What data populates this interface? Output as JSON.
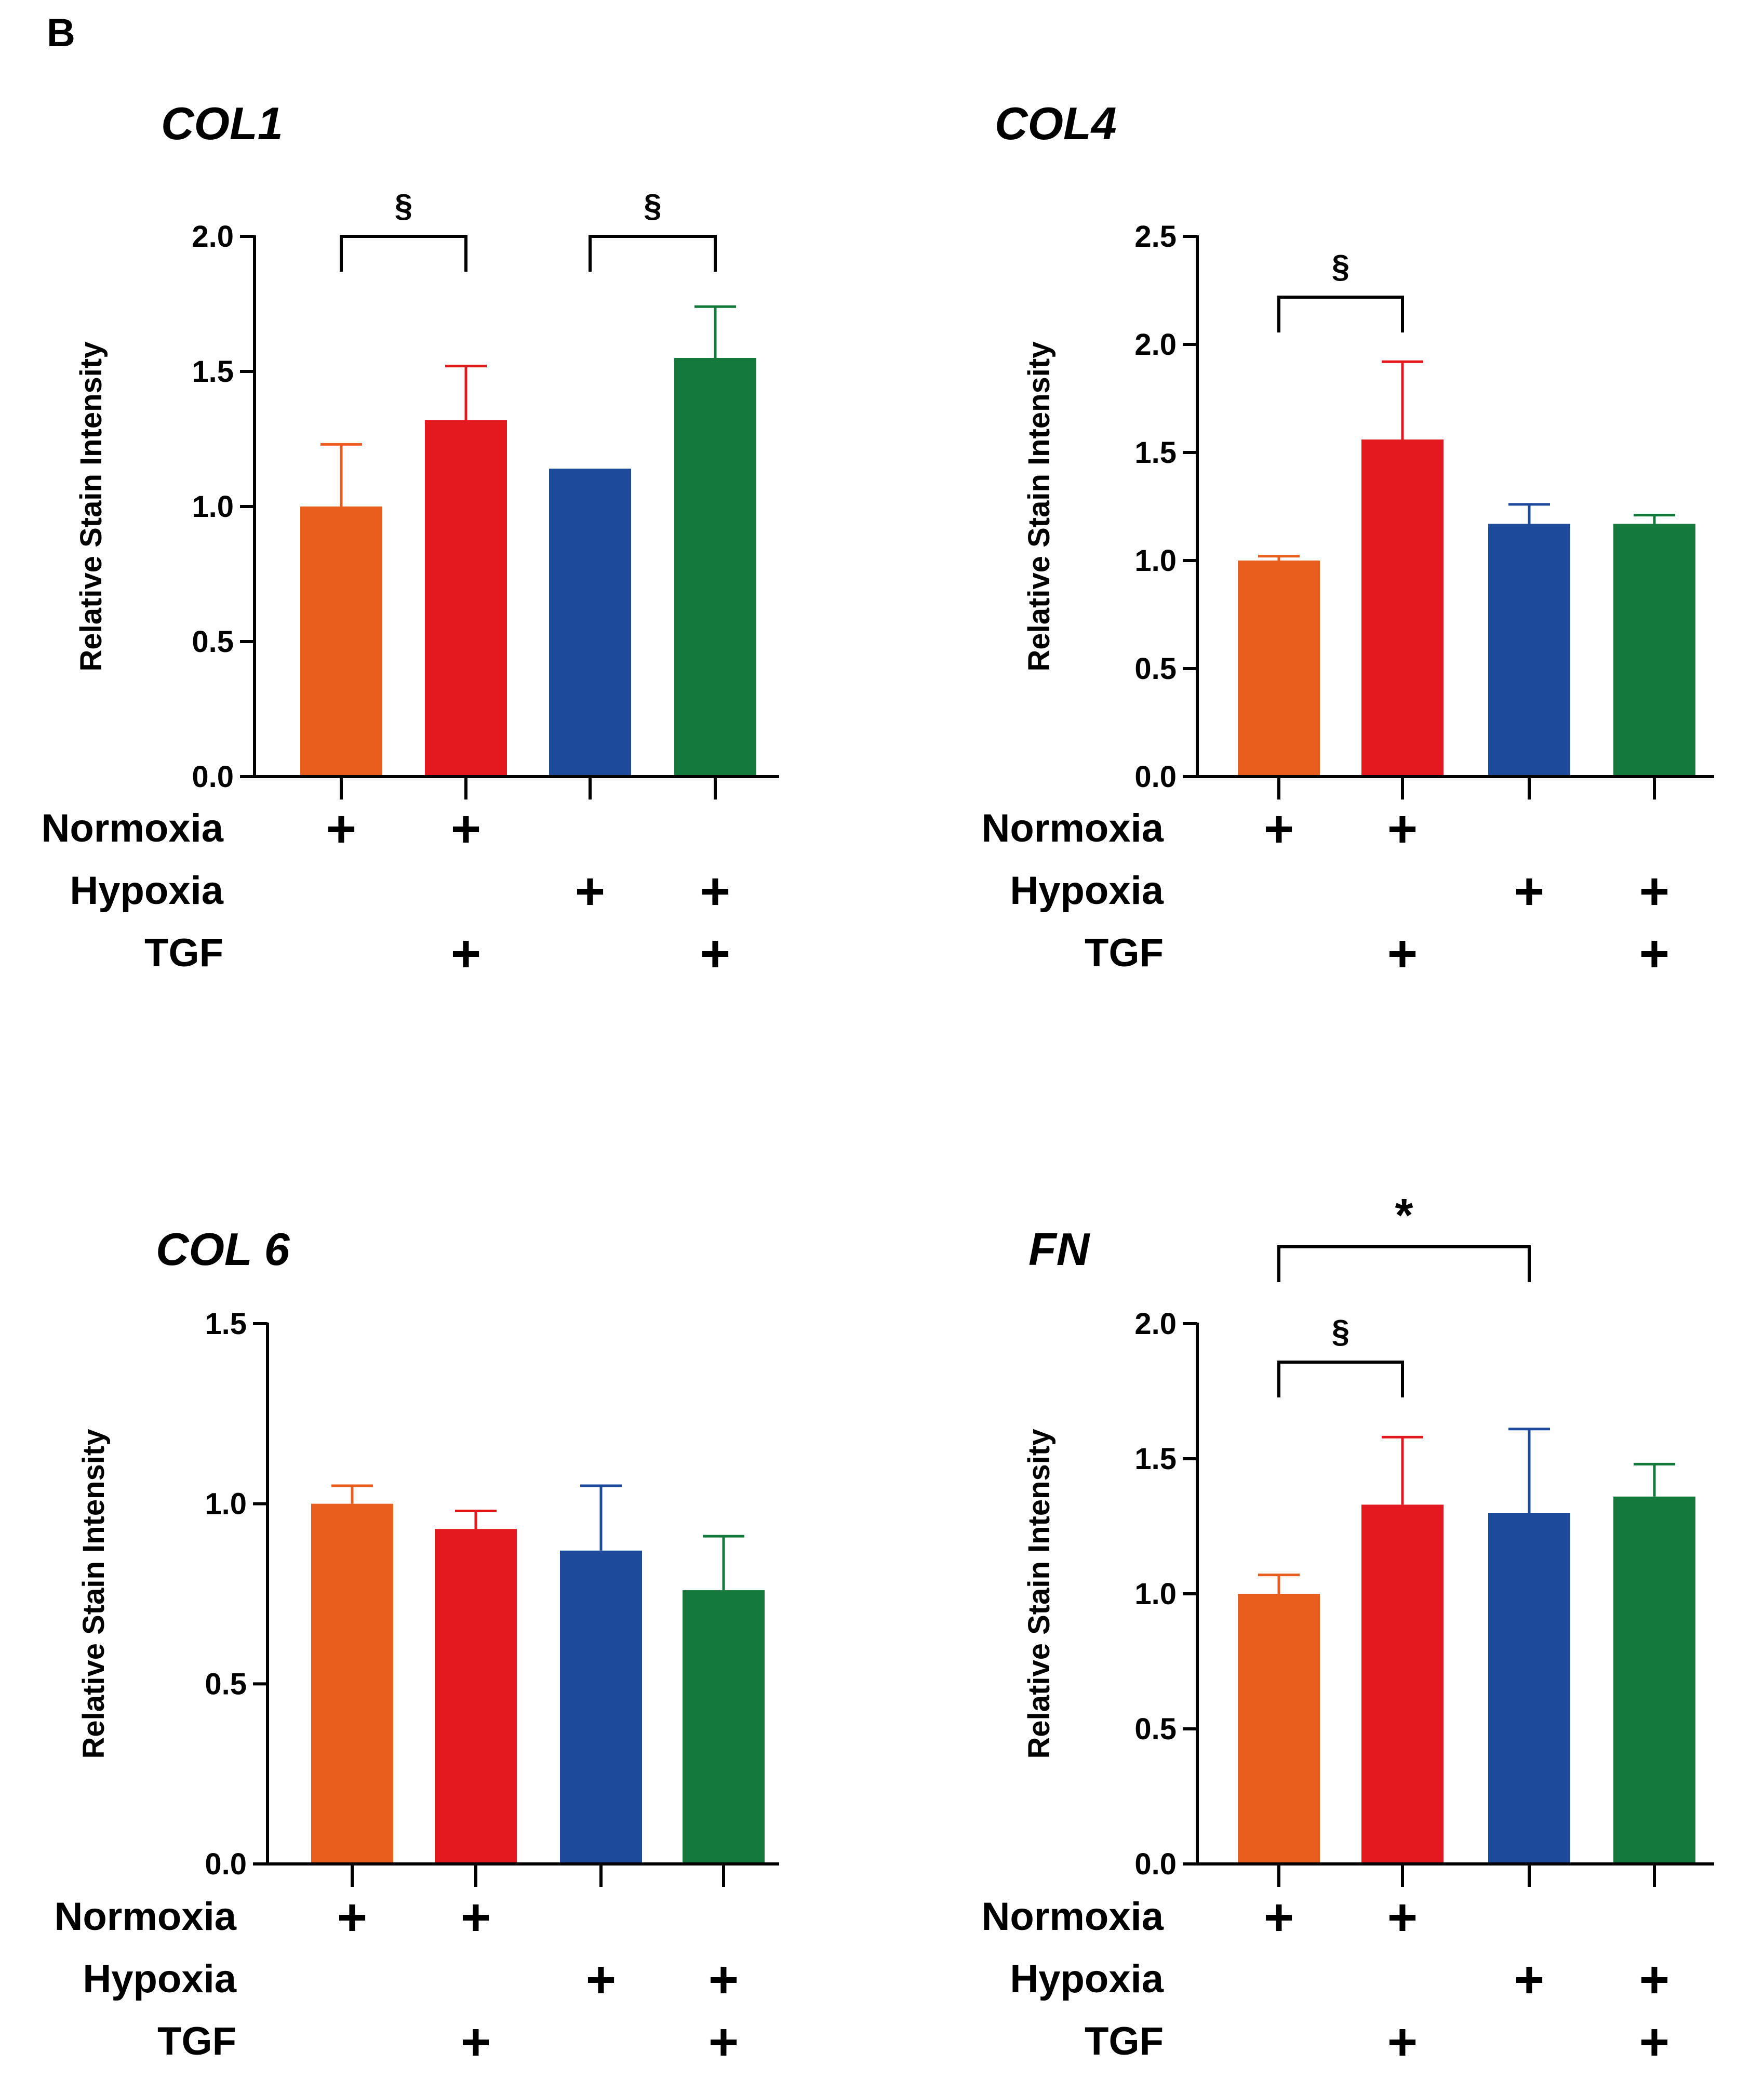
{
  "figure": {
    "panel_label": "B"
  },
  "colors": {
    "normoxia": "#E95E1C",
    "normoxia_tgf": "#E3191F",
    "hypoxia": "#1E4A9B",
    "hypoxia_tgf": "#147A3C",
    "axis": "#000000"
  },
  "chart_data": [
    {
      "type": "bar",
      "title": "COL1",
      "ylabel": "Relative Stain Intensity",
      "xlabel": "",
      "ylim": [
        0,
        2.0
      ],
      "yticks": [
        0.0,
        0.5,
        1.0,
        1.5,
        2.0
      ],
      "ytick_labels": [
        "0.0",
        "0.5",
        "1.0",
        "1.5",
        "2.0"
      ],
      "categories": [
        "Normoxia",
        "Normoxia + TGF",
        "Hypoxia",
        "Hypoxia + TGF"
      ],
      "values": [
        1.0,
        1.32,
        1.14,
        1.55
      ],
      "errors": [
        0.23,
        0.2,
        0.0,
        0.19
      ],
      "condition_rows": [
        {
          "label": "Normoxia",
          "marks": [
            "+",
            "+",
            "",
            ""
          ]
        },
        {
          "label": "Hypoxia",
          "marks": [
            "",
            "",
            "+",
            "+"
          ]
        },
        {
          "label": "TGF",
          "marks": [
            "",
            "+",
            "",
            "+"
          ]
        }
      ],
      "significance": [
        {
          "from": 0,
          "to": 1,
          "label": "§"
        },
        {
          "from": 2,
          "to": 3,
          "label": "§"
        }
      ]
    },
    {
      "type": "bar",
      "title": "COL4",
      "ylabel": "Relative Stain Intensity",
      "xlabel": "",
      "ylim": [
        0,
        2.5
      ],
      "yticks": [
        0.0,
        0.5,
        1.0,
        1.5,
        2.0,
        2.5
      ],
      "ytick_labels": [
        "0.0",
        "0.5",
        "1.0",
        "1.5",
        "2.0",
        "2.5"
      ],
      "categories": [
        "Normoxia",
        "Normoxia + TGF",
        "Hypoxia",
        "Hypoxia + TGF"
      ],
      "values": [
        1.0,
        1.56,
        1.17,
        1.17
      ],
      "errors": [
        0.02,
        0.36,
        0.09,
        0.04
      ],
      "condition_rows": [
        {
          "label": "Normoxia",
          "marks": [
            "+",
            "+",
            "",
            ""
          ]
        },
        {
          "label": "Hypoxia",
          "marks": [
            "",
            "",
            "+",
            "+"
          ]
        },
        {
          "label": "TGF",
          "marks": [
            "",
            "+",
            "",
            "+"
          ]
        }
      ],
      "significance": [
        {
          "from": 0,
          "to": 1,
          "label": "§"
        }
      ]
    },
    {
      "type": "bar",
      "title": "COL 6",
      "ylabel": "Relative Stain Intensity",
      "xlabel": "",
      "ylim": [
        0,
        1.5
      ],
      "yticks": [
        0.0,
        0.5,
        1.0,
        1.5
      ],
      "ytick_labels": [
        "0.0",
        "0.5",
        "1.0",
        "1.5"
      ],
      "categories": [
        "Normoxia",
        "Normoxia + TGF",
        "Hypoxia",
        "Hypoxia + TGF"
      ],
      "values": [
        1.0,
        0.93,
        0.87,
        0.76
      ],
      "errors": [
        0.05,
        0.05,
        0.18,
        0.15
      ],
      "condition_rows": [
        {
          "label": "Normoxia",
          "marks": [
            "+",
            "+",
            "",
            ""
          ]
        },
        {
          "label": "Hypoxia",
          "marks": [
            "",
            "",
            "+",
            "+"
          ]
        },
        {
          "label": "TGF",
          "marks": [
            "",
            "+",
            "",
            "+"
          ]
        }
      ],
      "significance": []
    },
    {
      "type": "bar",
      "title": "FN",
      "ylabel": "Relative Stain Intensity",
      "xlabel": "",
      "ylim": [
        0,
        2.0
      ],
      "yticks": [
        0.0,
        0.5,
        1.0,
        1.5,
        2.0
      ],
      "ytick_labels": [
        "0.0",
        "0.5",
        "1.0",
        "1.5",
        "2.0"
      ],
      "categories": [
        "Normoxia",
        "Normoxia + TGF",
        "Hypoxia",
        "Hypoxia + TGF"
      ],
      "values": [
        1.0,
        1.33,
        1.3,
        1.36
      ],
      "errors": [
        0.07,
        0.25,
        0.31,
        0.12
      ],
      "condition_rows": [
        {
          "label": "Normoxia",
          "marks": [
            "+",
            "+",
            "",
            ""
          ]
        },
        {
          "label": "Hypoxia",
          "marks": [
            "",
            "",
            "+",
            "+"
          ]
        },
        {
          "label": "TGF",
          "marks": [
            "",
            "+",
            "",
            "+"
          ]
        }
      ],
      "significance": [
        {
          "from": 0,
          "to": 1,
          "label": "§"
        },
        {
          "from": 0,
          "to": 2,
          "label": "*"
        }
      ]
    }
  ]
}
